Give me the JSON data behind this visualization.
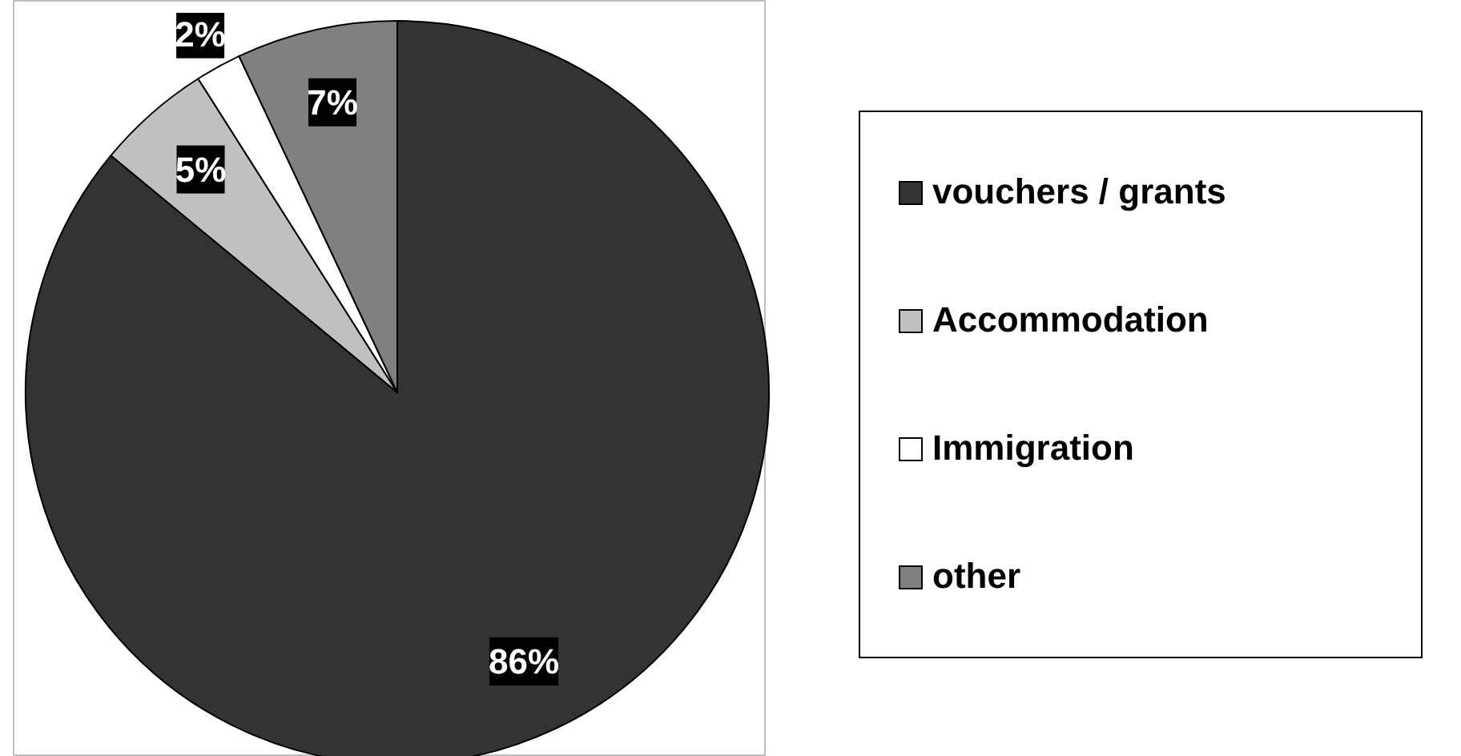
{
  "chart_data": {
    "type": "pie",
    "categories": [
      "vouchers / grants",
      "Accommodation",
      "Immigration",
      "other"
    ],
    "values": [
      86,
      5,
      2,
      7
    ],
    "colors": [
      "#333333",
      "#c0c0c0",
      "#ffffff",
      "#808080"
    ],
    "value_labels": [
      "86%",
      "5%",
      "2%",
      "7%"
    ],
    "legend": "right"
  }
}
